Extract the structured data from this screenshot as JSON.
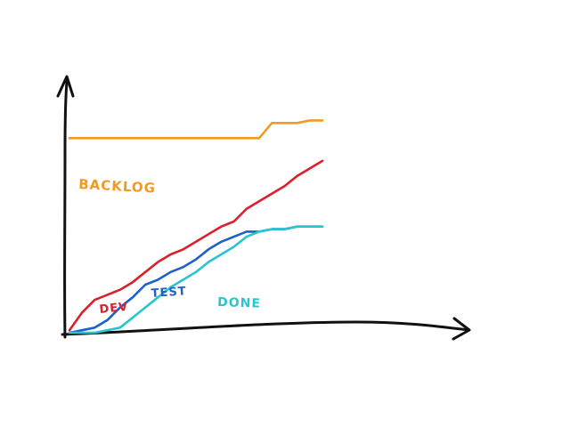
{
  "chart_data": {
    "type": "area",
    "title": "",
    "xlabel": "",
    "ylabel": "",
    "grid": false,
    "legend": "none",
    "xlim": [
      0,
      20
    ],
    "ylim": [
      0,
      100
    ],
    "x": [
      0,
      1,
      2,
      3,
      4,
      5,
      6,
      7,
      8,
      9,
      10,
      11,
      12,
      13,
      14,
      15,
      16,
      17,
      18,
      19,
      20
    ],
    "series": [
      {
        "name": "BACKLOG",
        "color": "#f29a1f",
        "values": [
          77,
          77,
          77,
          77,
          77,
          77,
          77,
          77,
          77,
          77,
          77,
          77,
          77,
          77,
          77,
          77,
          83,
          83,
          83,
          84,
          84
        ]
      },
      {
        "name": "DEV",
        "color": "#d8212b",
        "values": [
          1,
          8,
          13,
          15,
          17,
          20,
          24,
          28,
          31,
          33,
          36,
          39,
          42,
          44,
          49,
          52,
          55,
          58,
          62,
          65,
          68
        ]
      },
      {
        "name": "TEST",
        "color": "#1f5fc9",
        "values": [
          0,
          1,
          2,
          5,
          10,
          14,
          19,
          21,
          24,
          26,
          29,
          33,
          36,
          38,
          40,
          40,
          41,
          41,
          42,
          42,
          42
        ]
      },
      {
        "name": "DONE",
        "color": "#27c6cf",
        "values": [
          0,
          0,
          0,
          1,
          2,
          6,
          10,
          14,
          18,
          21,
          24,
          28,
          31,
          34,
          38,
          40,
          41,
          41,
          42,
          42,
          42
        ]
      }
    ]
  }
}
